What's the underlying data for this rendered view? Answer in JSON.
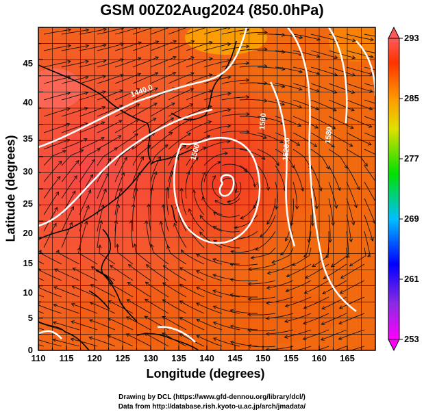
{
  "title": "GSM 00Z02Aug2024 (850.0hPa)",
  "axes": {
    "xlabel": "Longitude (degrees)",
    "ylabel": "Latitude  (degrees)",
    "x_ticks": [
      "110",
      "115",
      "120",
      "125",
      "130",
      "135",
      "140",
      "145",
      "150",
      "155",
      "160",
      "165"
    ],
    "y_ticks": [
      "0",
      "5",
      "10",
      "15",
      "20",
      "25",
      "30",
      "35",
      "40",
      "45"
    ],
    "x_range": [
      110,
      170
    ],
    "y_range": [
      0,
      50
    ]
  },
  "colorbar": {
    "labels": [
      "293",
      "285",
      "277",
      "269",
      "261",
      "253"
    ],
    "range": [
      253,
      293
    ],
    "colors": [
      "#ff00ff",
      "#8a2be2",
      "#0000ff",
      "#00bfff",
      "#00ff00",
      "#ffff00",
      "#ff8000",
      "#ff0000",
      "#ff5a5a"
    ]
  },
  "contour_labels": [
    "1440.0",
    "1500",
    "1520.0",
    "1560",
    "1580"
  ],
  "credits": {
    "line1": "Drawing by DCL (https://www.gfd-dennou.org/library/dcl/)",
    "line2": "Data from http://database.rish.kyoto-u.ac.jp/arch/jmadata/"
  }
}
